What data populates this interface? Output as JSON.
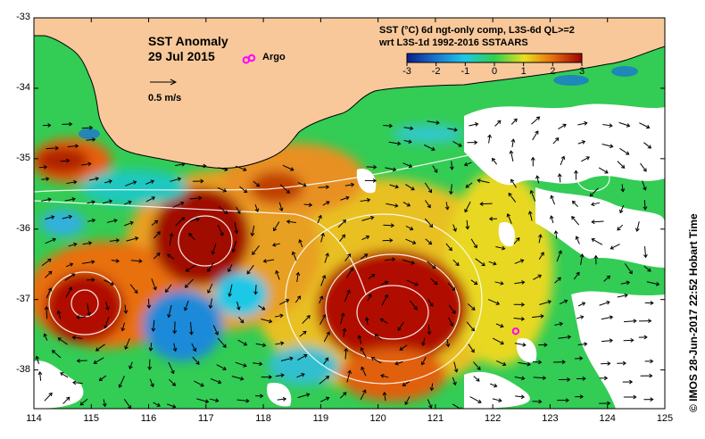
{
  "map": {
    "title": "SST Anomaly",
    "date": "29 Jul 2015",
    "argo_label": "Argo",
    "vector_scale_label": "0.5 m/s",
    "product_line1": "SST (°C) 6d ngt-only comp, L3S-6d QL>=2",
    "product_line2": "wrt L3S-1d 1992-2016 SSTAARS",
    "credit": "© IMOS 28-Jun-2017 22:52 Hobart Time",
    "colors": {
      "land": "#f8c89a",
      "neg3": "#0a1e8c",
      "neg2": "#1a78d2",
      "neg1": "#1ec8e6",
      "zero": "#2fcf4f",
      "pos1": "#e8e020",
      "pos2": "#e87010",
      "pos3": "#a00000",
      "argo": "#ff00ff"
    },
    "colorbar": {
      "min": -3,
      "max": 3,
      "ticks": [
        "-3",
        "-2",
        "-1",
        "0",
        "1",
        "2",
        "3"
      ]
    },
    "x_axis": {
      "ticks": [
        "114",
        "115",
        "116",
        "117",
        "118",
        "119",
        "120",
        "121",
        "122",
        "123",
        "124",
        "125"
      ]
    },
    "y_axis": {
      "ticks": [
        "-33",
        "-34",
        "-35",
        "-36",
        "-37",
        "-38"
      ]
    },
    "argo_floats": [
      {
        "lon": 122.4,
        "lat": -37.45
      },
      {
        "lon": 117.7,
        "lat": -33.6
      }
    ]
  }
}
